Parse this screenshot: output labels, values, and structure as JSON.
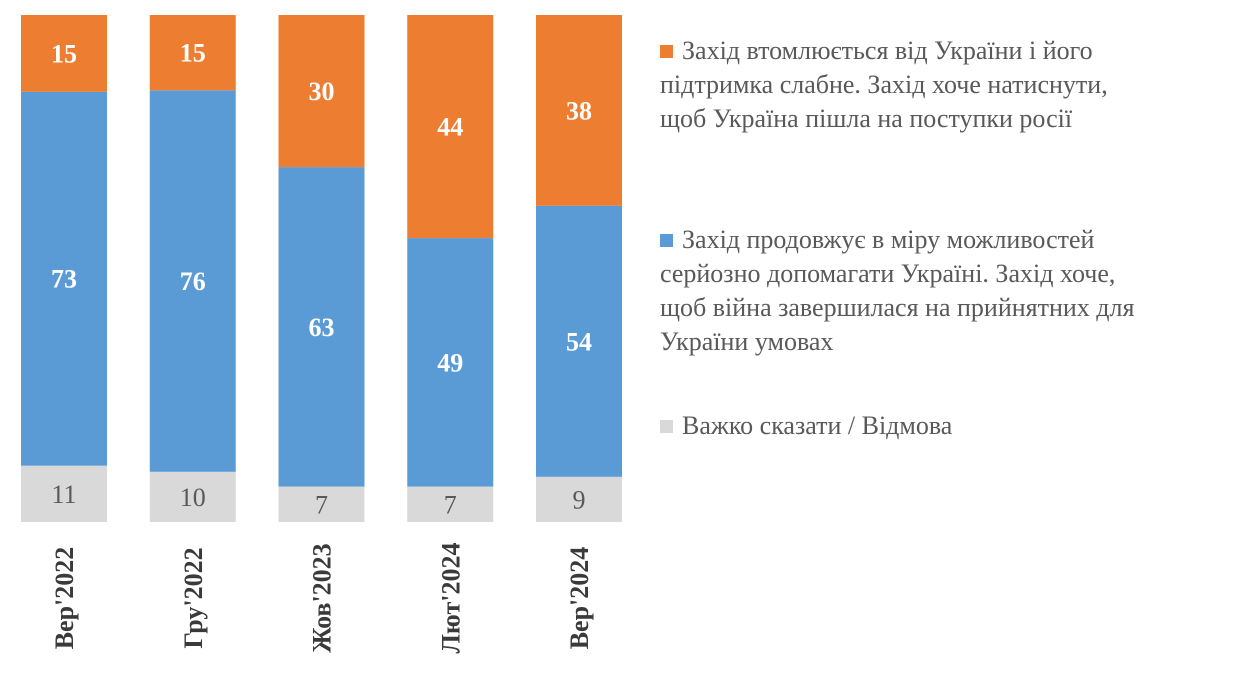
{
  "chart_data": {
    "type": "bar",
    "stacked": true,
    "orientation": "vertical",
    "categories": [
      "Вер'2022",
      "Гру'2022",
      "Жов'2023",
      "Лют'2024",
      "Вер'2024"
    ],
    "series": [
      {
        "name": "Важко сказати / Відмова",
        "color": "#d9d9d9",
        "label_color": "#595959",
        "values": [
          11,
          10,
          7,
          7,
          9
        ]
      },
      {
        "name": "Захід продовжує в міру можливостей серйозно допомагати Україні. Захід хоче, щоб війна завершилася на прийнятних для України умовах",
        "color": "#5b9bd5",
        "label_color": "#ffffff",
        "values": [
          73,
          76,
          63,
          49,
          54
        ]
      },
      {
        "name": "Захід втомлюється від України і його підтримка слабне. Захід хоче натиснути, щоб Україна пішла на поступки росії",
        "color": "#ed7d31",
        "label_color": "#ffffff",
        "values": [
          15,
          15,
          30,
          44,
          38
        ]
      }
    ],
    "legend_order": [
      2,
      1,
      0
    ],
    "legend_position": "right",
    "legend_lines": [
      [
        "Захід втомлюється від України і його",
        "підтримка слабне. Захід хоче натиснути,",
        "щоб Україна пішла на поступки росії"
      ],
      [
        "Захід продовжує в міру можливостей",
        "серйозно допомагати Україні. Захід хоче,",
        "щоб війна завершилася на прийнятних для",
        "України умовах"
      ],
      [
        "Важко сказати / Відмова"
      ]
    ],
    "grid": false,
    "y_axis_visible": false
  }
}
